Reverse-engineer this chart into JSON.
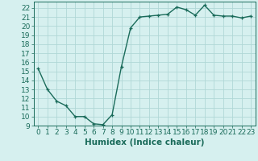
{
  "x": [
    0,
    1,
    2,
    3,
    4,
    5,
    6,
    7,
    8,
    9,
    10,
    11,
    12,
    13,
    14,
    15,
    16,
    17,
    18,
    19,
    20,
    21,
    22,
    23
  ],
  "y": [
    15.3,
    13.0,
    11.7,
    11.2,
    10.0,
    10.0,
    9.2,
    9.1,
    10.2,
    15.5,
    19.8,
    21.0,
    21.1,
    21.2,
    21.3,
    22.1,
    21.8,
    21.2,
    22.3,
    21.2,
    21.1,
    21.1,
    20.9,
    21.1
  ],
  "line_color": "#1a6b5a",
  "marker": "+",
  "bg_color": "#d6f0ef",
  "grid_color": "#b0d8d6",
  "xlabel": "Humidex (Indice chaleur)",
  "xlim": [
    -0.5,
    23.5
  ],
  "ylim": [
    9,
    22.7
  ],
  "yticks": [
    9,
    10,
    11,
    12,
    13,
    14,
    15,
    16,
    17,
    18,
    19,
    20,
    21,
    22
  ],
  "xticks": [
    0,
    1,
    2,
    3,
    4,
    5,
    6,
    7,
    8,
    9,
    10,
    11,
    12,
    13,
    14,
    15,
    16,
    17,
    18,
    19,
    20,
    21,
    22,
    23
  ],
  "tick_fontsize": 6.5,
  "xlabel_fontsize": 7.5,
  "linewidth": 1.0,
  "markersize": 3.5,
  "markeredgewidth": 0.9
}
